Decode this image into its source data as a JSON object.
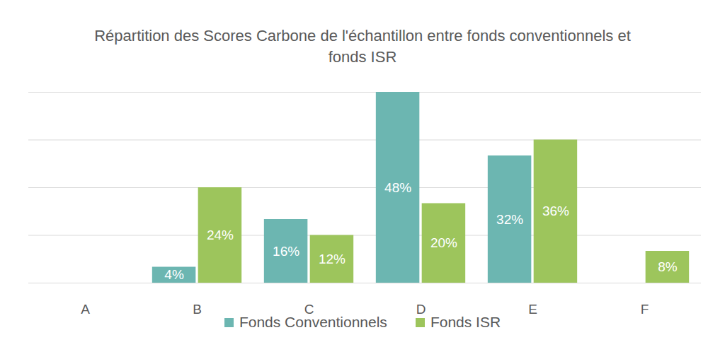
{
  "chart_data": {
    "type": "bar",
    "title": "Répartition des Scores Carbone de l'échantillon entre fonds conventionnels et fonds ISR",
    "categories": [
      "A",
      "B",
      "C",
      "D",
      "E",
      "F"
    ],
    "series": [
      {
        "name": "Fonds Conventionnels",
        "color": "#6cb6b1",
        "values": [
          null,
          4,
          16,
          48,
          32,
          null
        ],
        "value_labels": [
          null,
          "4%",
          "16%",
          "48%",
          "32%",
          null
        ]
      },
      {
        "name": "Fonds ISR",
        "color": "#9dc55c",
        "values": [
          null,
          24,
          12,
          20,
          36,
          8
        ],
        "value_labels": [
          null,
          "24%",
          "12%",
          "20%",
          "36%",
          "8%"
        ]
      }
    ],
    "ylim": [
      0,
      48
    ],
    "yticks": [
      0,
      12,
      24,
      36,
      48
    ],
    "grid": true,
    "legend": "bottom",
    "data_labels": true,
    "tick_labels": "x"
  }
}
